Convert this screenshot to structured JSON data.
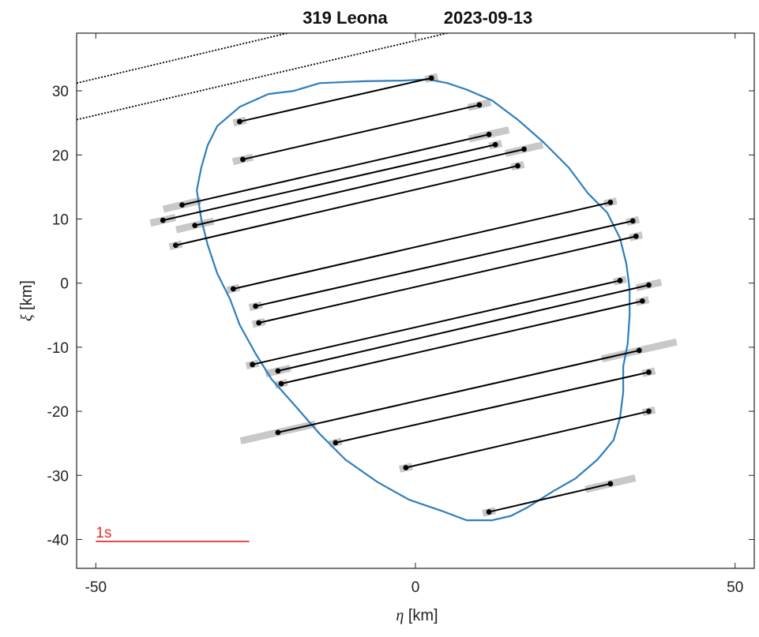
{
  "chart_data": {
    "type": "scatter",
    "title_object": "319 Leona",
    "title_date": "2023-09-13",
    "xlabel_symbol": "η",
    "xlabel_unit": "[km]",
    "ylabel_symbol": "ξ",
    "ylabel_unit": "[km]",
    "xlim": [
      -53,
      53
    ],
    "ylim": [
      -44.5,
      39
    ],
    "x_ticks": [
      -50,
      0,
      50
    ],
    "x_tick_labels": [
      "-50",
      "0",
      "50"
    ],
    "y_ticks": [
      -40,
      -30,
      -20,
      -10,
      0,
      10,
      20,
      30
    ],
    "y_tick_labels": [
      "-40",
      "-30",
      "-20",
      "-10",
      "0",
      "10",
      "20",
      "30"
    ],
    "grid": false,
    "scale_bar": {
      "label": "1s",
      "x": [
        -50,
        -26
      ],
      "y": -40.3
    },
    "chords": [
      {
        "x1": -27.5,
        "y1": 25.2,
        "x2": 2.5,
        "y2": 32.0,
        "unc1": 1.0,
        "unc2": 1.0
      },
      {
        "x1": -27.0,
        "y1": 19.3,
        "x2": 10.0,
        "y2": 27.8,
        "unc1": 1.6,
        "unc2": 1.8
      },
      {
        "x1": -36.5,
        "y1": 12.2,
        "x2": 11.5,
        "y2": 23.2,
        "unc1": 3.0,
        "unc2": 3.2
      },
      {
        "x1": -39.5,
        "y1": 9.8,
        "x2": 12.5,
        "y2": 21.6,
        "unc1": 2.0,
        "unc2": 1.0
      },
      {
        "x1": -34.5,
        "y1": 9.0,
        "x2": 17.0,
        "y2": 20.9,
        "unc1": 3.0,
        "unc2": 3.0
      },
      {
        "x1": -37.5,
        "y1": 5.9,
        "x2": 16.0,
        "y2": 18.3,
        "unc1": 1.0,
        "unc2": 1.0
      },
      {
        "x1": -28.5,
        "y1": -0.9,
        "x2": 30.5,
        "y2": 12.6,
        "unc1": 1.0,
        "unc2": 1.0
      },
      {
        "x1": -25.0,
        "y1": -3.6,
        "x2": 34.0,
        "y2": 9.7,
        "unc1": 1.0,
        "unc2": 1.0
      },
      {
        "x1": -24.5,
        "y1": -6.2,
        "x2": 34.5,
        "y2": 7.3,
        "unc1": 1.0,
        "unc2": 1.0
      },
      {
        "x1": -25.5,
        "y1": -12.7,
        "x2": 32.0,
        "y2": 0.4,
        "unc1": 1.0,
        "unc2": 1.0
      },
      {
        "x1": -21.5,
        "y1": -13.7,
        "x2": 36.5,
        "y2": -0.3,
        "unc1": 2.0,
        "unc2": 2.0
      },
      {
        "x1": -21.0,
        "y1": -15.7,
        "x2": 35.5,
        "y2": -2.8,
        "unc1": 1.0,
        "unc2": 1.0
      },
      {
        "x1": -21.5,
        "y1": -23.3,
        "x2": 35.0,
        "y2": -10.5,
        "unc1": 6.0,
        "unc2": 6.0
      },
      {
        "x1": -12.5,
        "y1": -24.9,
        "x2": 36.5,
        "y2": -13.9,
        "unc1": 1.0,
        "unc2": 1.0
      },
      {
        "x1": -1.5,
        "y1": -28.8,
        "x2": 36.5,
        "y2": -20.0,
        "unc1": 1.0,
        "unc2": 1.0
      },
      {
        "x1": 11.5,
        "y1": -35.7,
        "x2": 30.5,
        "y2": -31.3,
        "unc1": 1.0,
        "unc2": 4.0
      }
    ],
    "shadow_paths_outside": [
      {
        "x1": -53,
        "y1": 31.2,
        "x2": -20,
        "y2": 39
      },
      {
        "x1": -53,
        "y1": 25.5,
        "x2": 5,
        "y2": 39
      }
    ],
    "profile": [
      [
        -19,
        30
      ],
      [
        -15,
        31.2
      ],
      [
        -8,
        31.5
      ],
      [
        -2,
        31.6
      ],
      [
        2,
        31.8
      ],
      [
        5,
        31.2
      ],
      [
        8,
        30.2
      ],
      [
        12,
        28.5
      ],
      [
        16,
        25.5
      ],
      [
        20,
        22
      ],
      [
        24,
        18
      ],
      [
        27,
        14
      ],
      [
        30,
        11
      ],
      [
        32,
        7
      ],
      [
        33,
        3
      ],
      [
        33.5,
        -1
      ],
      [
        33.5,
        -5
      ],
      [
        33.2,
        -9.5
      ],
      [
        32.5,
        -13
      ],
      [
        32.5,
        -17
      ],
      [
        32,
        -21
      ],
      [
        31,
        -24.5
      ],
      [
        28.5,
        -27.5
      ],
      [
        25,
        -30.5
      ],
      [
        21.5,
        -32.5
      ],
      [
        17.5,
        -35
      ],
      [
        15,
        -36.3
      ],
      [
        12,
        -37
      ],
      [
        8,
        -37
      ],
      [
        4,
        -35.5
      ],
      [
        -1,
        -33.8
      ],
      [
        -6,
        -31
      ],
      [
        -11,
        -27.5
      ],
      [
        -15,
        -23.5
      ],
      [
        -18.5,
        -19.5
      ],
      [
        -22.5,
        -15
      ],
      [
        -25,
        -11
      ],
      [
        -27.5,
        -6.5
      ],
      [
        -29,
        -2.5
      ],
      [
        -31,
        1.5
      ],
      [
        -32.5,
        6
      ],
      [
        -33.5,
        10
      ],
      [
        -34.2,
        14.5
      ],
      [
        -33.5,
        18
      ],
      [
        -32.5,
        21.5
      ],
      [
        -31,
        24.5
      ],
      [
        -27.5,
        27.5
      ],
      [
        -23,
        29.5
      ],
      [
        -19,
        30
      ]
    ],
    "colors": {
      "profile": "#2E7EBD",
      "chord": "#000000",
      "uncertainty": "#C8C8C8",
      "scale_bar": "#E03030",
      "axes": "#222222"
    }
  }
}
